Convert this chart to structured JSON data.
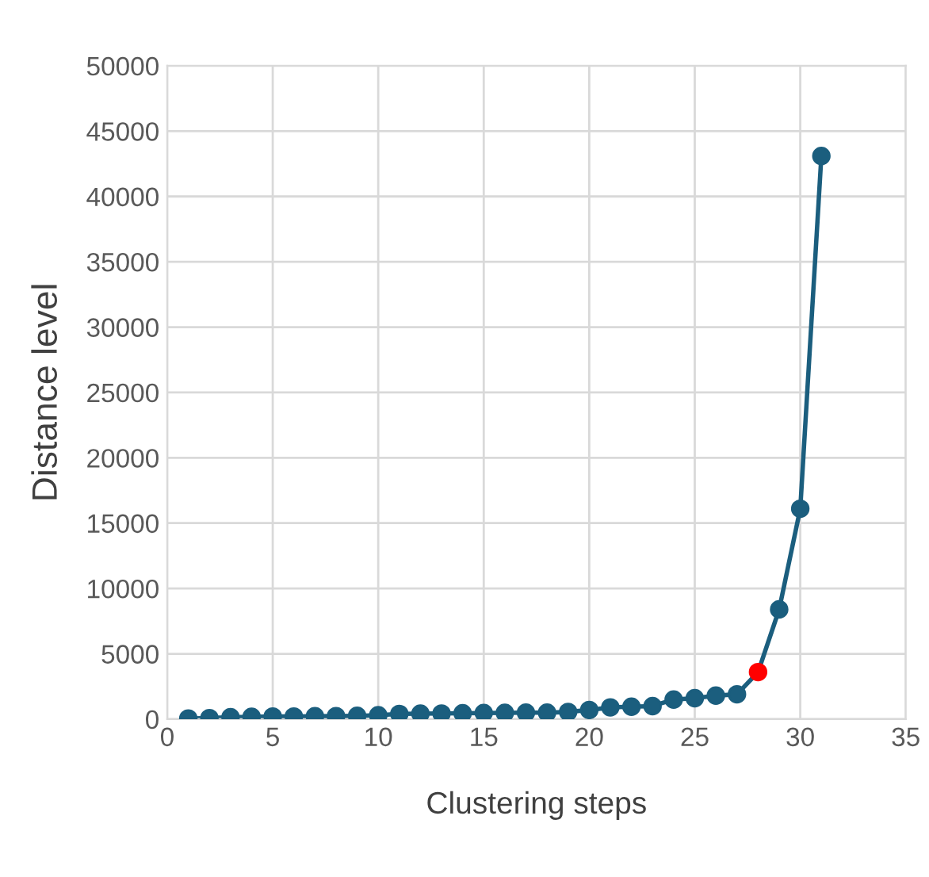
{
  "chart_data": {
    "type": "line",
    "xlabel": "Clustering steps",
    "ylabel": "Distance level",
    "x": [
      1,
      2,
      3,
      4,
      5,
      6,
      7,
      8,
      9,
      10,
      11,
      12,
      13,
      14,
      15,
      16,
      17,
      18,
      19,
      20,
      21,
      22,
      23,
      24,
      25,
      26,
      27,
      28,
      29,
      30,
      31
    ],
    "series": [
      {
        "color": "#1b5e7e",
        "values": [
          50,
          80,
          150,
          180,
          200,
          200,
          220,
          230,
          250,
          300,
          400,
          420,
          430,
          450,
          470,
          480,
          500,
          500,
          550,
          700,
          900,
          950,
          1000,
          1500,
          1600,
          1800,
          1900,
          3600,
          8400,
          16100,
          43100
        ],
        "colors": [
          "#1b5e7e",
          "#1b5e7e",
          "#1b5e7e",
          "#1b5e7e",
          "#1b5e7e",
          "#1b5e7e",
          "#1b5e7e",
          "#1b5e7e",
          "#1b5e7e",
          "#1b5e7e",
          "#1b5e7e",
          "#1b5e7e",
          "#1b5e7e",
          "#1b5e7e",
          "#1b5e7e",
          "#1b5e7e",
          "#1b5e7e",
          "#1b5e7e",
          "#1b5e7e",
          "#1b5e7e",
          "#1b5e7e",
          "#1b5e7e",
          "#1b5e7e",
          "#1b5e7e",
          "#1b5e7e",
          "#1b5e7e",
          "#1b5e7e",
          "#ff0000",
          "#1b5e7e",
          "#1b5e7e",
          "#1b5e7e"
        ]
      }
    ],
    "xlim": [
      0,
      35
    ],
    "xticks": [
      0,
      5,
      10,
      15,
      20,
      25,
      30,
      35
    ],
    "ylim": [
      0,
      50000
    ],
    "yticks": [
      0,
      5000,
      10000,
      15000,
      20000,
      25000,
      30000,
      35000,
      40000,
      45000,
      50000
    ],
    "grid": true,
    "marker": "circle",
    "line_style": "solid"
  }
}
